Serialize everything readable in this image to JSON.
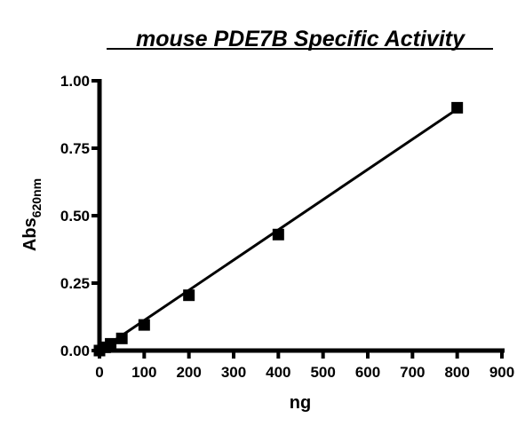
{
  "chart_data": {
    "type": "scatter",
    "title": "mouse PDE7B Specific Activity",
    "xlabel": "ng",
    "ylabel_main": "Abs",
    "ylabel_sub": "620nm",
    "xlim": [
      0,
      900
    ],
    "ylim": [
      0,
      1.0
    ],
    "x_ticks": [
      "0",
      "100",
      "200",
      "300",
      "400",
      "500",
      "600",
      "700",
      "800",
      "900"
    ],
    "y_ticks": [
      "0.00",
      "0.25",
      "0.50",
      "0.75",
      "1.00"
    ],
    "points": [
      {
        "x": 0,
        "y": 0.0
      },
      {
        "x": 12.5,
        "y": 0.012
      },
      {
        "x": 25,
        "y": 0.025
      },
      {
        "x": 50,
        "y": 0.045
      },
      {
        "x": 100,
        "y": 0.095
      },
      {
        "x": 200,
        "y": 0.205
      },
      {
        "x": 400,
        "y": 0.43
      },
      {
        "x": 800,
        "y": 0.9
      }
    ],
    "fit_line": {
      "x": [
        0,
        800
      ],
      "y": [
        0.0,
        0.895
      ]
    },
    "grid": false,
    "legend": "none",
    "marker": "filled-square",
    "color": "#000000"
  }
}
